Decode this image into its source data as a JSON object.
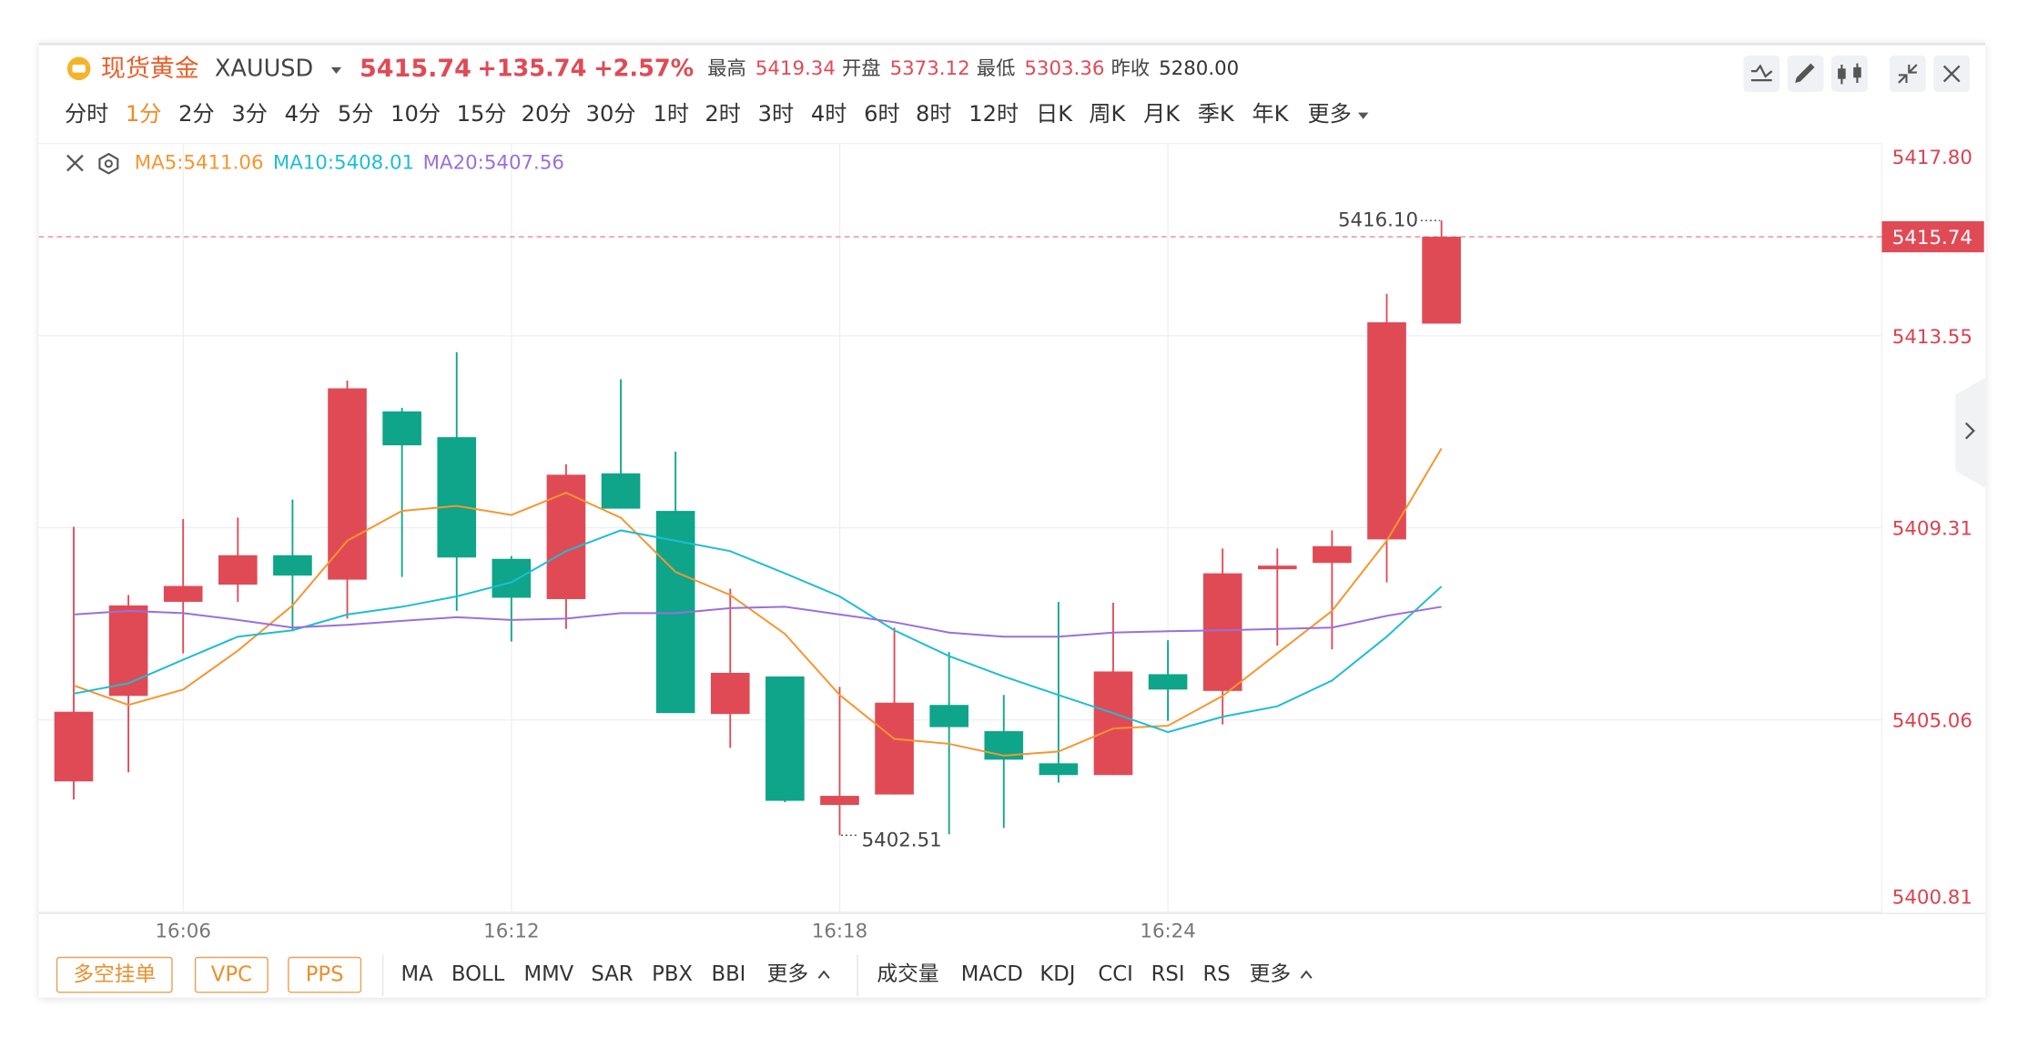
{
  "header": {
    "name": "现货黄金",
    "symbol": "XAUUSD",
    "price": "5415.74",
    "change": "+135.74",
    "change_pct": "+2.57%",
    "stats": [
      {
        "label": "最高",
        "value": "5419.34",
        "color": "#e04a55"
      },
      {
        "label": "开盘",
        "value": "5373.12",
        "color": "#e04a55"
      },
      {
        "label": "最低",
        "value": "5303.36",
        "color": "#e04a55"
      },
      {
        "label": "昨收",
        "value": "5280.00",
        "color": "#333333"
      }
    ]
  },
  "periods": {
    "items": [
      "分时",
      "1分",
      "2分",
      "3分",
      "4分",
      "5分",
      "10分",
      "15分",
      "20分",
      "30分",
      "1时",
      "2时",
      "3时",
      "4时",
      "6时",
      "8时",
      "12时",
      "日K",
      "周K",
      "月K",
      "季K",
      "年K",
      "更多"
    ],
    "active": 1
  },
  "chart_data": {
    "type": "candlestick",
    "categories": [
      null,
      null,
      "16:06",
      null,
      null,
      null,
      null,
      null,
      "16:12",
      null,
      null,
      null,
      null,
      null,
      "16:18",
      null,
      null,
      null,
      null,
      null,
      "16:24",
      null,
      null,
      null,
      null,
      null
    ],
    "open": [
      5403.7,
      5405.59,
      5407.67,
      5408.05,
      5408.7,
      5408.16,
      5411.88,
      5411.31,
      5408.62,
      5407.73,
      5410.51,
      5409.68,
      5405.19,
      5406.02,
      5403.18,
      5403.41,
      5405.39,
      5404.81,
      5404.1,
      5403.84,
      5406.07,
      5405.7,
      5408.39,
      5408.53,
      5409.05,
      5413.82
    ],
    "high": [
      5409.33,
      5407.82,
      5409.5,
      5409.53,
      5409.93,
      5412.56,
      5411.96,
      5413.19,
      5408.68,
      5410.71,
      5412.59,
      5410.99,
      5407.96,
      5406.02,
      5405.79,
      5407.1,
      5406.56,
      5405.61,
      5407.67,
      5407.65,
      5406.82,
      5408.85,
      5408.85,
      5409.25,
      5414.48,
      5416.1
    ],
    "low": [
      5403.3,
      5403.9,
      5406.53,
      5407.67,
      5407.02,
      5407.3,
      5408.22,
      5407.47,
      5406.79,
      5407.07,
      5409.73,
      5405.21,
      5404.44,
      5403.24,
      5402.51,
      5403.41,
      5402.53,
      5402.67,
      5403.67,
      5403.84,
      5405.04,
      5404.96,
      5406.7,
      5406.62,
      5408.1,
      5413.82
    ],
    "close": [
      5405.24,
      5407.59,
      5408.02,
      5408.7,
      5408.25,
      5412.39,
      5411.13,
      5408.65,
      5407.76,
      5410.48,
      5409.73,
      5405.21,
      5406.1,
      5403.27,
      5403.38,
      5405.44,
      5404.9,
      5404.18,
      5403.84,
      5406.13,
      5405.73,
      5408.3,
      5408.47,
      5408.9,
      5413.85,
      5415.74
    ],
    "up_color": "#e04a55",
    "down_color": "#0ea58a",
    "series": [
      {
        "name": "MA5:5411.06",
        "color": "#f5962f",
        "values": [
          5405.82,
          5405.39,
          5405.73,
          5406.59,
          5407.59,
          5409.02,
          5409.68,
          5409.79,
          5409.59,
          5410.08,
          5409.53,
          5408.33,
          5407.82,
          5406.96,
          5405.61,
          5404.64,
          5404.53,
          5404.27,
          5404.36,
          5404.87,
          5404.93,
          5405.59,
          5406.53,
          5407.47,
          5409.02,
          5411.06
        ]
      },
      {
        "name": "MA10:5408.01",
        "color": "#1fbdd3",
        "values": [
          5405.64,
          5405.87,
          5406.39,
          5406.9,
          5407.04,
          5407.39,
          5407.56,
          5407.79,
          5408.1,
          5408.79,
          5409.25,
          5409.02,
          5408.79,
          5408.3,
          5407.79,
          5407.04,
          5406.47,
          5406.02,
          5405.61,
          5405.21,
          5404.79,
          5405.13,
          5405.36,
          5405.93,
          5406.9,
          5408.01
        ]
      },
      {
        "name": "MA20:5407.56",
        "color": "#9a6fdc",
        "values": [
          5407.39,
          5407.47,
          5407.42,
          5407.27,
          5407.1,
          5407.16,
          5407.25,
          5407.33,
          5407.27,
          5407.3,
          5407.42,
          5407.42,
          5407.53,
          5407.56,
          5407.39,
          5407.22,
          5406.99,
          5406.9,
          5406.9,
          5406.99,
          5407.02,
          5407.04,
          5407.07,
          5407.1,
          5407.36,
          5407.56
        ]
      }
    ],
    "ylim": [
      5400.81,
      5417.8
    ],
    "yticks": [
      {
        "value": 5417.8,
        "label": "5417.80"
      },
      5413.55,
      5409.31,
      5405.06,
      5400.81
    ],
    "grid": true,
    "last_price": 5415.74,
    "max_label": "5416.10",
    "min_label": "5402.51"
  },
  "toolbar": {
    "buttons": [
      "多空挂单",
      "VPC",
      "PPS"
    ],
    "main_indicators": [
      "MA",
      "BOLL",
      "MMV",
      "SAR",
      "PBX",
      "BBI",
      "更多"
    ],
    "sub_indicators": [
      "成交量",
      "MACD",
      "KDJ",
      "CCI",
      "RSI",
      "RS",
      "更多"
    ]
  }
}
